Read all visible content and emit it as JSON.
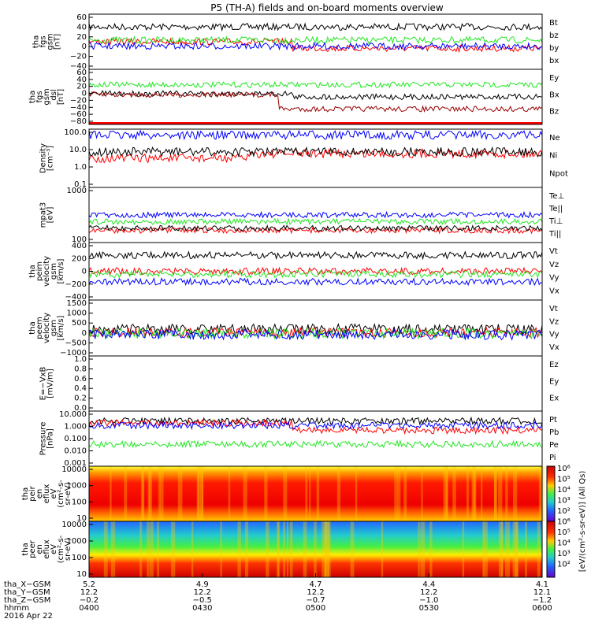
{
  "title": "P5 (TH-A) fields and on-board moments overview",
  "colors": {
    "black": "#000000",
    "red": "#ff0000",
    "green": "#22e622",
    "blue": "#0000ff",
    "darkred": "#990000",
    "white": "#ffffff"
  },
  "chart_data": [
    {
      "id": "fgs",
      "type": "line",
      "ylabel": [
        "tha",
        "fgs",
        "gsm",
        "[nT]"
      ],
      "ylim": [
        -40,
        60
      ],
      "ticks": [
        "60",
        "40",
        "20",
        "0",
        "−20",
        "−40"
      ],
      "series": [
        {
          "name": "Bt",
          "color": "black"
        },
        {
          "name": "bz",
          "color": "red"
        },
        {
          "name": "by",
          "color": "green"
        },
        {
          "name": "bx",
          "color": "blue"
        }
      ]
    },
    {
      "id": "fgs_dsl",
      "type": "line",
      "ylabel": [
        "tha",
        "fgs",
        "gsm",
        "_dsl",
        "[nT]"
      ],
      "ylim": [
        -80,
        60
      ],
      "ticks": [
        "60",
        "40",
        "20",
        "0",
        "−20",
        "−40",
        "−60",
        "−80"
      ],
      "series": [
        {
          "name": "Ey",
          "color": "green"
        },
        {
          "name": "Bx",
          "color": "black"
        },
        {
          "name": "Bz",
          "color": "darkred"
        }
      ]
    },
    {
      "id": "density",
      "type": "line",
      "ylabel": [
        "Density",
        "[cm⁻³]"
      ],
      "ylim": [
        0.1,
        200
      ],
      "log": true,
      "ticks": [
        "100.0",
        "10.0",
        "1.0",
        "0.1"
      ],
      "series": [
        {
          "name": "Ne",
          "color": "red"
        },
        {
          "name": "Ni",
          "color": "black"
        },
        {
          "name": "Npot",
          "color": "blue"
        }
      ]
    },
    {
      "id": "temp",
      "type": "line",
      "ylabel": [
        "mpat3",
        "[eV]"
      ],
      "ylim": [
        20,
        4000
      ],
      "log": true,
      "ticks": [
        "1000",
        "100"
      ],
      "series": [
        {
          "name": "Te⊥",
          "color": "red"
        },
        {
          "name": "Te||",
          "color": "black"
        },
        {
          "name": "Ti⊥",
          "color": "blue"
        },
        {
          "name": "Ti||",
          "color": "green"
        }
      ]
    },
    {
      "id": "peim",
      "type": "line",
      "ylabel": [
        "tha",
        "peim",
        "velocity",
        "gsm",
        "[km/s]"
      ],
      "ylim": [
        -400,
        400
      ],
      "ticks": [
        "400",
        "200",
        "0",
        "−200",
        "−400"
      ],
      "series": [
        {
          "name": "Vt",
          "color": "black"
        },
        {
          "name": "Vz",
          "color": "red"
        },
        {
          "name": "Vy",
          "color": "green"
        },
        {
          "name": "Vx",
          "color": "blue"
        }
      ]
    },
    {
      "id": "peem",
      "type": "line",
      "ylabel": [
        "tha",
        "peem",
        "velocity",
        "gsm",
        "[km/s]"
      ],
      "ylim": [
        -1000,
        1500
      ],
      "ticks": [
        "1500",
        "1000",
        "500",
        "0",
        "−500",
        "−1000"
      ],
      "series": [
        {
          "name": "Vt",
          "color": "black"
        },
        {
          "name": "Vz",
          "color": "red"
        },
        {
          "name": "Vy",
          "color": "green"
        },
        {
          "name": "Vx",
          "color": "blue"
        }
      ]
    },
    {
      "id": "efield",
      "type": "line",
      "ylabel": [
        "E=−VxB",
        "[mV/m]"
      ],
      "ylim": [
        0,
        1
      ],
      "ticks": [
        "1.0",
        "0.8",
        "0.6",
        "0.4",
        "0.2",
        "0.0"
      ],
      "series": [
        {
          "name": "Ez",
          "color": "red"
        },
        {
          "name": "Ey",
          "color": "green"
        },
        {
          "name": "Ex",
          "color": "blue"
        }
      ]
    },
    {
      "id": "pressure",
      "type": "line",
      "ylabel": [
        "Pressure",
        "[nPa]"
      ],
      "ylim": [
        0.001,
        10
      ],
      "log": true,
      "ticks": [
        "10.000",
        "1.000",
        "0.100",
        "0.010",
        "0.001"
      ],
      "series": [
        {
          "name": "Pt",
          "color": "black"
        },
        {
          "name": "Pb",
          "color": "red"
        },
        {
          "name": "Pe",
          "color": "green"
        },
        {
          "name": "Pi",
          "color": "blue"
        }
      ]
    },
    {
      "id": "peir",
      "type": "heatmap",
      "ylabel": [
        "tha",
        "peir",
        "en",
        "eflux",
        "eV",
        "(cm²-s-",
        "sr-eV)"
      ],
      "ticks": [
        "10000",
        "1000",
        "100",
        "10"
      ]
    },
    {
      "id": "peer",
      "type": "heatmap",
      "ylabel": [
        "tha",
        "peer",
        "en",
        "eflux",
        "eV",
        "(cm²-s-",
        "sr-eV)"
      ],
      "ticks": [
        "10000",
        "1000",
        "100",
        "10"
      ]
    }
  ],
  "colorbar": {
    "label": "[eV/(cm²-s-sr-eV)] (All Qs)",
    "ticks": [
      "10⁶",
      "10⁵",
      "10⁴",
      "10³",
      "10²",
      "10⁶",
      "10⁵",
      "10⁴",
      "10³",
      "10²"
    ]
  },
  "ephemeris": {
    "labels": [
      "tha_X−GSM",
      "tha_Y−GSM",
      "tha_Z−GSM",
      "hhmm",
      "2016 Apr 22"
    ],
    "columns": [
      {
        "x": "5.2",
        "y": "12.2",
        "z": "−0.2",
        "t": "0400"
      },
      {
        "x": "4.9",
        "y": "12.2",
        "z": "−0.5",
        "t": "0430"
      },
      {
        "x": "4.7",
        "y": "12.2",
        "z": "−0.7",
        "t": "0500"
      },
      {
        "x": "4.4",
        "y": "12.2",
        "z": "−1.0",
        "t": "0530"
      },
      {
        "x": "4.1",
        "y": "12.1",
        "z": "−1.2",
        "t": "0600"
      }
    ]
  }
}
